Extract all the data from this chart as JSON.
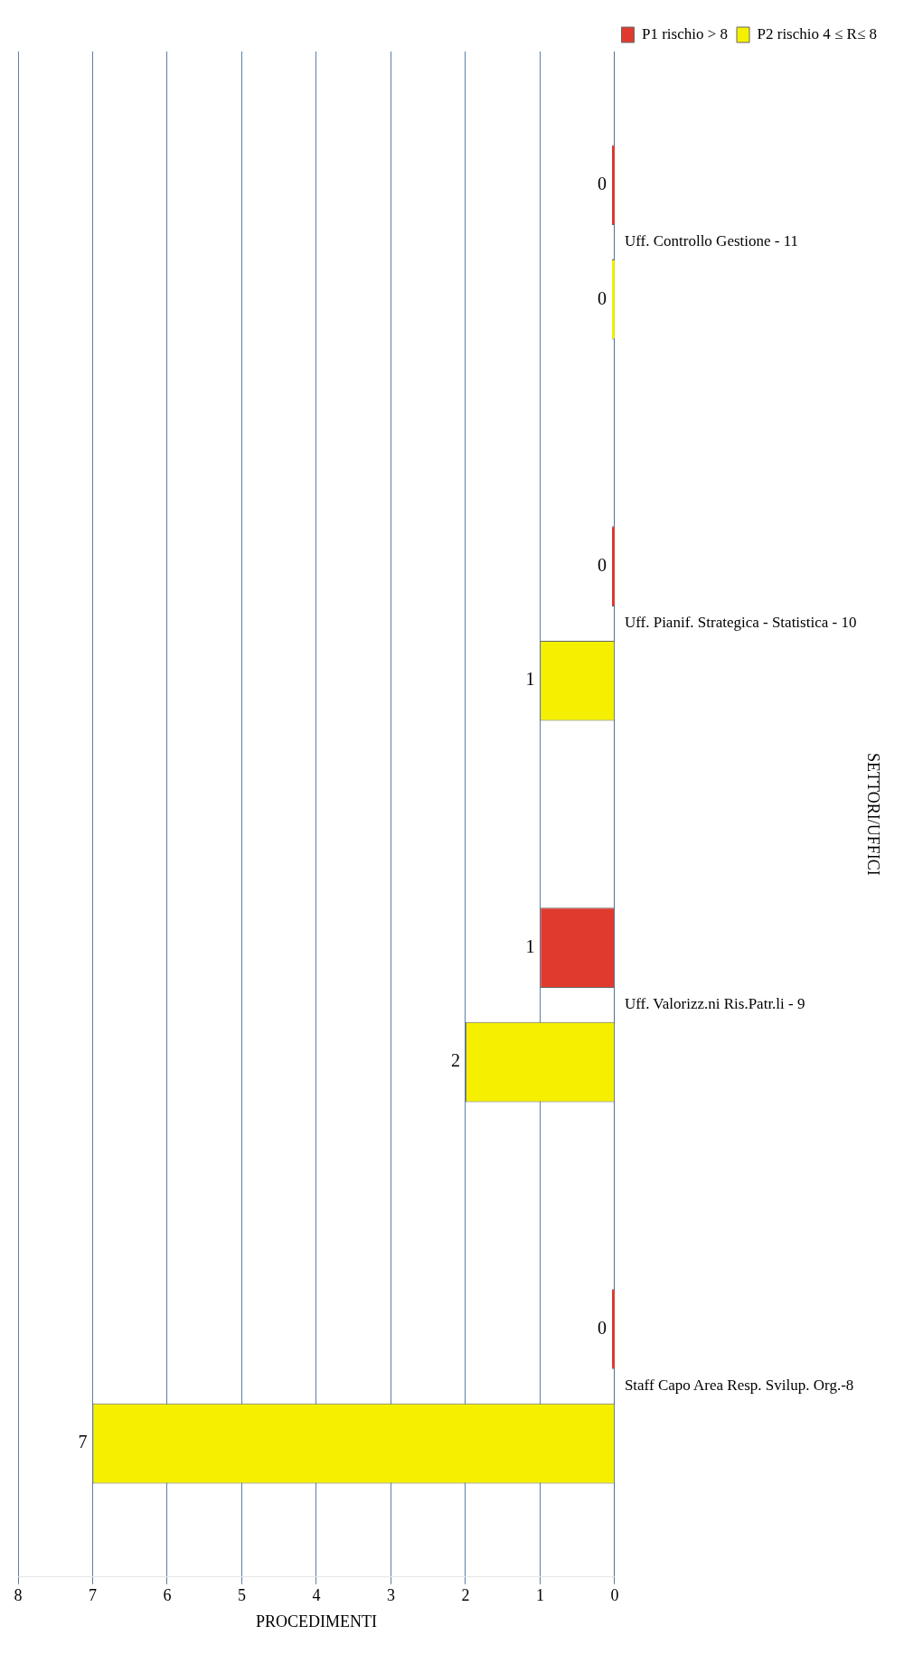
{
  "chart_data": {
    "type": "bar",
    "orientation": "horizontal",
    "xlabel": "PROCEDIMENTI",
    "ylabel": "SETTORI/UFFICI",
    "categories": [
      "Uff. Controllo Gestione - 11",
      "Uff. Pianif. Strategica - Statistica - 10",
      "Uff. Valorizz.ni Ris.Patr.li - 9",
      "Staff Capo Area Resp. Svilup. Org.-8"
    ],
    "series": [
      {
        "name": "P1 rischio > 8",
        "color": "#e03a2f",
        "values": [
          0,
          0,
          1,
          0
        ]
      },
      {
        "name": "P2 rischio 4 ≤ R≤ 8",
        "color": "#f5f000",
        "values": [
          0,
          1,
          2,
          7
        ]
      }
    ],
    "xlim": [
      8,
      0
    ],
    "xticks": [
      0,
      1,
      2,
      3,
      4,
      5,
      6,
      7,
      8
    ],
    "grid": "x",
    "legend": "top right",
    "data_labels": true
  }
}
